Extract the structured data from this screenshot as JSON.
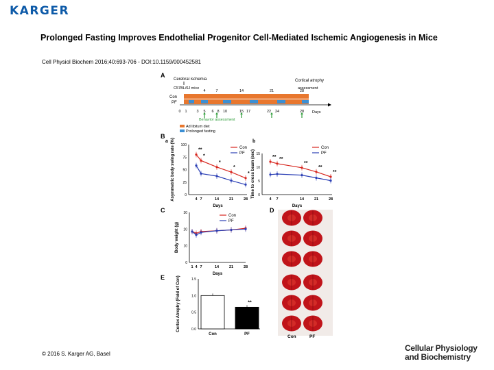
{
  "brand": "KARGER",
  "title": "Prolonged Fasting Improves Endothelial Progenitor Cell-Mediated Ischemic Angiogenesis in Mice",
  "citation": "Cell Physiol Biochem 2016;40:693-706 - DOI:10.1159/000452581",
  "copyright": "© 2016 S. Karger AG, Basel",
  "journal_line1": "Cellular Physiology",
  "journal_line2": "and Biochemistry",
  "colors": {
    "con": "#d7261e",
    "pf": "#2b3fb5",
    "adlib": "#e8772e",
    "fasting": "#3b8fd4",
    "arrow": "#2e9d3a"
  },
  "panelA": {
    "label": "A",
    "ischemia": "Cerebral ischemia",
    "strain": "C57BL/6J mice",
    "atrophy": "Cortical atrophy",
    "assessment": "assessment",
    "con": "Con",
    "pf": "PF",
    "behavior": "Behavior assessment",
    "days_label": "Days",
    "legend_adlib": "Ad libitum diet",
    "legend_fasting": "Prolonged fasting",
    "top_days": [
      "4",
      "7",
      "14",
      "21",
      "28"
    ],
    "bottom_ticks": [
      "0",
      "1",
      "3",
      "5",
      "6",
      "8",
      "10",
      "15",
      "17",
      "22",
      "24",
      "28"
    ]
  },
  "chart_data": [
    {
      "type": "line",
      "panel": "Ba",
      "ylabel": "Asymmetric body swing rate (%)",
      "xlabel": "Days",
      "categories": [
        "4",
        "7",
        "14",
        "21",
        "28"
      ],
      "ylim": [
        0,
        100
      ],
      "yticks": [
        "0",
        "25",
        "50",
        "75",
        "100"
      ],
      "series": [
        {
          "name": "Con",
          "values": [
            80,
            68,
            55,
            45,
            33
          ]
        },
        {
          "name": "PF",
          "values": [
            58,
            42,
            37,
            28,
            20
          ]
        }
      ],
      "annotations": [
        "**",
        "*",
        "*",
        "*",
        "*"
      ]
    },
    {
      "type": "line",
      "panel": "Bb",
      "ylabel": "Time to cross beam (sec)",
      "xlabel": "Days",
      "categories": [
        "4",
        "7",
        "14",
        "21",
        "28"
      ],
      "ylim": [
        0,
        15
      ],
      "yticks": [
        "0",
        "5",
        "10",
        "15"
      ],
      "series": [
        {
          "name": "Con",
          "values": [
            12,
            11.3,
            9.8,
            8.3,
            6.5
          ]
        },
        {
          "name": "PF",
          "values": [
            7.3,
            7.5,
            7.1,
            6.1,
            5.1
          ]
        }
      ],
      "annotations": [
        "**",
        "**",
        "**",
        "**",
        "**"
      ]
    },
    {
      "type": "line",
      "panel": "C",
      "ylabel": "Body weight (g)",
      "xlabel": "Days",
      "categories": [
        "1",
        "4",
        "7",
        "14",
        "21",
        "28"
      ],
      "ylim": [
        0,
        30
      ],
      "yticks": [
        "0",
        "10",
        "20",
        "30"
      ],
      "series": [
        {
          "name": "Con",
          "values": [
            18.5,
            17.5,
            18.5,
            19.0,
            19.5,
            20.5
          ]
        },
        {
          "name": "PF",
          "values": [
            18.5,
            16.5,
            18.0,
            19.0,
            19.5,
            20.0
          ]
        }
      ]
    },
    {
      "type": "bar",
      "panel": "E",
      "ylabel": "Cortex Atrophy (Fold of Con)",
      "categories": [
        "Con",
        "PF"
      ],
      "values": [
        1.0,
        0.65
      ],
      "ylim": [
        0,
        1.5
      ],
      "yticks": [
        "0.0",
        "0.5",
        "1.0",
        "1.5"
      ],
      "annotations": [
        "",
        "**"
      ]
    }
  ],
  "panelD": {
    "label": "D",
    "con": "Con",
    "pf": "PF"
  },
  "panel_labels": {
    "B": "B",
    "a": "a",
    "b": "b",
    "C": "C",
    "E": "E"
  },
  "legend": {
    "con": "Con",
    "pf": "PF"
  }
}
